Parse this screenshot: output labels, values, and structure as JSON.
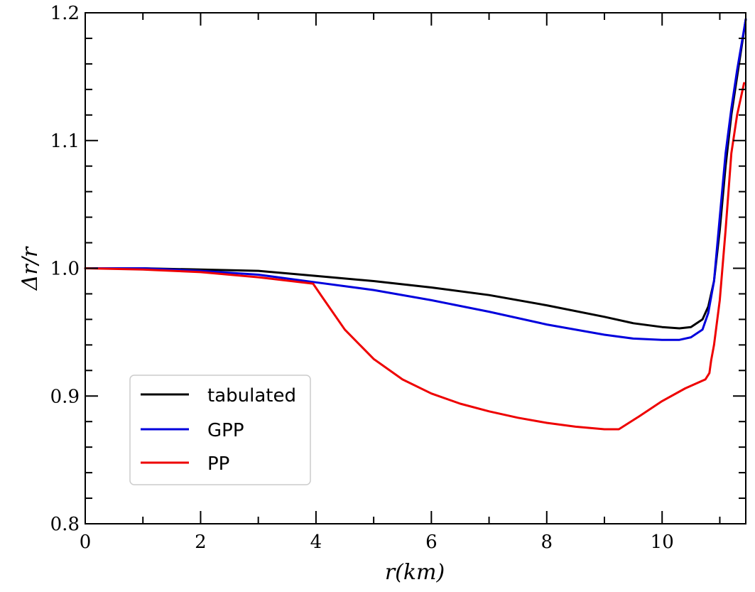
{
  "chart_data": {
    "type": "line",
    "title": "",
    "xlabel": "r(km)",
    "ylabel": "Δr/r",
    "xlim": [
      0,
      11.45
    ],
    "ylim": [
      0.8,
      1.2
    ],
    "x_ticks": [
      0,
      2,
      4,
      6,
      8,
      10
    ],
    "x_tick_labels": [
      "0",
      "2",
      "4",
      "6",
      "8",
      "10"
    ],
    "y_ticks": [
      0.8,
      0.9,
      1.0,
      1.1,
      1.2
    ],
    "y_tick_labels": [
      "0.8",
      "0.9",
      "1.0",
      "1.1",
      "1.2"
    ],
    "grid": false,
    "legend_position": "lower-left",
    "series": [
      {
        "name": "tabulated",
        "color": "#000000",
        "x": [
          0,
          1,
          2,
          3,
          4,
          5,
          6,
          7,
          8,
          9,
          9.5,
          10,
          10.3,
          10.5,
          10.7,
          10.8,
          10.9,
          11.0,
          11.1,
          11.2,
          11.3,
          11.45
        ],
        "y": [
          1.0,
          1.0,
          0.999,
          0.998,
          0.994,
          0.99,
          0.985,
          0.979,
          0.971,
          0.962,
          0.957,
          0.954,
          0.953,
          0.954,
          0.96,
          0.97,
          0.99,
          1.03,
          1.08,
          1.12,
          1.15,
          1.195
        ]
      },
      {
        "name": "GPP",
        "color": "#0000dd",
        "x": [
          0,
          1,
          2,
          3,
          4,
          5,
          6,
          7,
          8,
          9,
          9.5,
          10,
          10.3,
          10.5,
          10.7,
          10.8,
          10.9,
          11.0,
          11.1,
          11.2,
          11.3,
          11.45
        ],
        "y": [
          1.0,
          1.0,
          0.998,
          0.995,
          0.989,
          0.983,
          0.975,
          0.966,
          0.956,
          0.948,
          0.945,
          0.944,
          0.944,
          0.946,
          0.952,
          0.965,
          0.99,
          1.04,
          1.09,
          1.125,
          1.155,
          1.195
        ]
      },
      {
        "name": "PP",
        "color": "#ee0000",
        "x": [
          0,
          1,
          2,
          3,
          3.95,
          4.1,
          4.5,
          5,
          5.5,
          6,
          6.5,
          7,
          7.5,
          8,
          8.5,
          9,
          9.25,
          9.6,
          10,
          10.4,
          10.75,
          10.82,
          10.85,
          10.9,
          11.0,
          11.1,
          11.2,
          11.3,
          11.42
        ],
        "y": [
          1.0,
          0.999,
          0.997,
          0.993,
          0.988,
          0.978,
          0.952,
          0.929,
          0.913,
          0.902,
          0.894,
          0.888,
          0.883,
          0.879,
          0.876,
          0.874,
          0.874,
          0.884,
          0.896,
          0.906,
          0.913,
          0.918,
          0.928,
          0.94,
          0.975,
          1.03,
          1.09,
          1.12,
          1.145
        ]
      }
    ]
  }
}
